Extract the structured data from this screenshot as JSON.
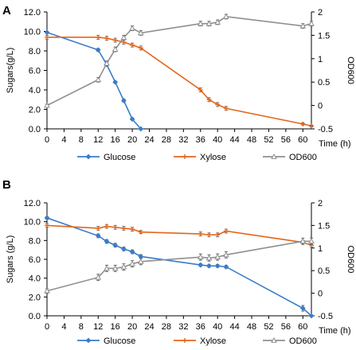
{
  "colors": {
    "glucose": "#3a7cc9",
    "xylose": "#e2661b",
    "od600": "#8f8f8f",
    "axis": "#000000",
    "errorbar": "#555555"
  },
  "chart_data": [
    {
      "panel_label": "A",
      "type": "line",
      "xlabel": "Time (h)",
      "ylabel": "Sugars(g/L)",
      "y2label": "OD600",
      "xlim": [
        0,
        62
      ],
      "xticks": [
        0,
        4,
        8,
        12,
        16,
        20,
        24,
        28,
        32,
        36,
        40,
        44,
        48,
        52,
        56,
        60
      ],
      "ylim": [
        0,
        12
      ],
      "yticks": [
        "0.0",
        "2.0",
        "4.0",
        "6.0",
        "8.0",
        "10.0",
        "12.0"
      ],
      "y2lim": [
        -0.5,
        2
      ],
      "y2ticks": [
        "-0.5",
        "0",
        "0.5",
        "1",
        "1.5",
        "2"
      ],
      "grid": false,
      "legend": "bottom",
      "series": [
        {
          "name": "Glucose",
          "axis": "left",
          "marker": "diamond",
          "x": [
            0,
            12,
            14,
            16,
            18,
            20,
            22
          ],
          "y": [
            9.9,
            8.1,
            6.6,
            4.8,
            2.9,
            1.0,
            0.0
          ],
          "err": [
            0.1,
            0.15,
            0.15,
            0.1,
            0.15,
            0.1,
            0.05
          ]
        },
        {
          "name": "Xylose",
          "axis": "left",
          "marker": "plus",
          "x": [
            0,
            12,
            14,
            16,
            18,
            20,
            22,
            36,
            38,
            40,
            42,
            60,
            62
          ],
          "y": [
            9.4,
            9.4,
            9.3,
            9.1,
            8.9,
            8.6,
            8.3,
            4.0,
            3.0,
            2.5,
            2.1,
            0.5,
            0.3
          ],
          "err": [
            0.2,
            0.2,
            0.2,
            0.2,
            0.2,
            0.2,
            0.2,
            0.2,
            0.2,
            0.2,
            0.2,
            0.1,
            0.1
          ]
        },
        {
          "name": "OD600",
          "axis": "right",
          "marker": "triangle",
          "x": [
            0,
            12,
            14,
            16,
            18,
            20,
            22,
            36,
            38,
            40,
            42,
            60,
            62
          ],
          "y": [
            0.0,
            0.55,
            0.9,
            1.2,
            1.45,
            1.65,
            1.55,
            1.75,
            1.75,
            1.78,
            1.9,
            1.7,
            1.75
          ],
          "err": [
            0.03,
            0.05,
            0.05,
            0.05,
            0.05,
            0.05,
            0.05,
            0.05,
            0.05,
            0.05,
            0.05,
            0.05,
            0.05
          ]
        }
      ]
    },
    {
      "panel_label": "B",
      "type": "line",
      "xlabel": "Time (h)",
      "ylabel": "Sugars (g/L)",
      "y2label": "OD600",
      "xlim": [
        0,
        62
      ],
      "xticks": [
        0,
        4,
        8,
        12,
        16,
        20,
        24,
        28,
        32,
        36,
        40,
        44,
        48,
        52,
        56,
        60
      ],
      "ylim": [
        0,
        12
      ],
      "yticks": [
        "0.0",
        "2.0",
        "4.0",
        "6.0",
        "8.0",
        "10.0",
        "12.0"
      ],
      "y2lim": [
        -0.5,
        2
      ],
      "y2ticks": [
        "-0.5",
        "0",
        "0.5",
        "1",
        "1.5",
        "2"
      ],
      "grid": false,
      "legend": "bottom",
      "series": [
        {
          "name": "Glucose",
          "axis": "left",
          "marker": "diamond",
          "x": [
            0,
            12,
            14,
            16,
            18,
            20,
            22,
            36,
            38,
            40,
            42,
            60,
            62
          ],
          "y": [
            10.4,
            8.5,
            7.9,
            7.5,
            7.1,
            6.8,
            6.3,
            5.4,
            5.3,
            5.3,
            5.2,
            0.8,
            0.0
          ],
          "err": [
            0.15,
            0.2,
            0.2,
            0.2,
            0.2,
            0.2,
            0.2,
            0.15,
            0.15,
            0.15,
            0.15,
            0.3,
            0.05
          ]
        },
        {
          "name": "Xylose",
          "axis": "left",
          "marker": "plus",
          "x": [
            0,
            12,
            14,
            16,
            18,
            20,
            22,
            36,
            38,
            40,
            42,
            60,
            62
          ],
          "y": [
            9.6,
            9.3,
            9.5,
            9.4,
            9.3,
            9.2,
            8.9,
            8.7,
            8.6,
            8.6,
            9.0,
            7.8,
            7.5
          ],
          "err": [
            0.2,
            0.2,
            0.2,
            0.2,
            0.2,
            0.2,
            0.15,
            0.2,
            0.2,
            0.2,
            0.2,
            0.2,
            0.2
          ]
        },
        {
          "name": "OD600",
          "axis": "right",
          "marker": "triangle",
          "x": [
            0,
            12,
            14,
            16,
            18,
            20,
            22,
            36,
            38,
            40,
            42,
            60,
            62
          ],
          "y": [
            0.05,
            0.35,
            0.55,
            0.55,
            0.58,
            0.65,
            0.7,
            0.8,
            0.78,
            0.8,
            0.85,
            1.15,
            1.15
          ],
          "err": [
            0.05,
            0.07,
            0.07,
            0.07,
            0.07,
            0.07,
            0.07,
            0.07,
            0.07,
            0.07,
            0.07,
            0.07,
            0.07
          ]
        }
      ]
    }
  ]
}
